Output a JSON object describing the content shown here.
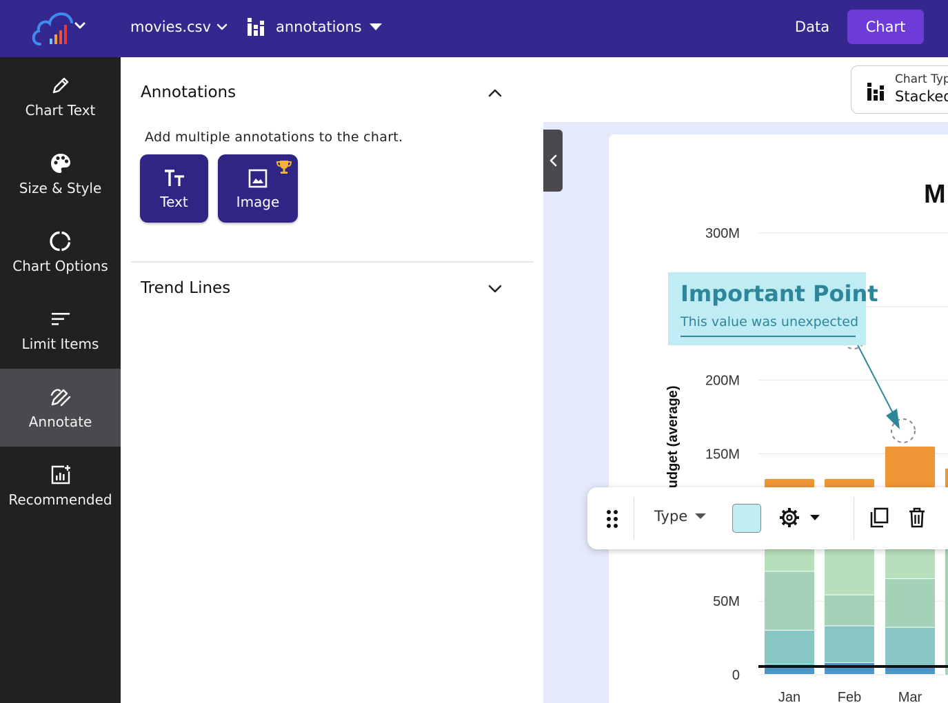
{
  "topbar": {
    "file_name": "movies.csv",
    "dataset_name": "annotations",
    "nav_data": "Data",
    "nav_chart": "Chart",
    "accent_color": "#34288e",
    "button_color": "#6d3bd8"
  },
  "sidebar": {
    "items": [
      {
        "label": "Chart Text",
        "icon": "pencil-icon"
      },
      {
        "label": "Size & Style",
        "icon": "palette-icon"
      },
      {
        "label": "Chart Options",
        "icon": "circle-options-icon"
      },
      {
        "label": "Limit Items",
        "icon": "filter-lines-icon"
      },
      {
        "label": "Annotate",
        "icon": "annotate-icon",
        "active": true
      },
      {
        "label": "Recommended",
        "icon": "recommended-chart-icon"
      }
    ]
  },
  "panel": {
    "annotations_title": "Annotations",
    "annotations_desc": "Add multiple annotations to the chart.",
    "text_button": "Text",
    "image_button": "Image",
    "trend_lines_title": "Trend Lines"
  },
  "chart_header": {
    "chart_type_label": "Chart Type",
    "chart_type_value": "Stacked"
  },
  "annotation": {
    "title": "Important Point",
    "subtitle": "This value was unexpected",
    "bg_color": "#c0ecf4",
    "text_color": "#2d8699"
  },
  "toolbar": {
    "type_label": "Type",
    "swatch_color": "#c0ecf4"
  },
  "chart_data": {
    "type": "bar",
    "stacked": true,
    "title": "M",
    "ylabel": "n Budget (average)",
    "ylim": [
      0,
      300000000
    ],
    "yticks": [
      "0",
      "50M",
      "150M",
      "200M",
      "300M"
    ],
    "ytick_values": [
      0,
      50000000,
      150000000,
      200000000,
      300000000
    ],
    "categories": [
      "Jan",
      "Feb",
      "Mar"
    ],
    "totals": [
      133000000,
      133000000,
      155000000
    ],
    "series": [
      {
        "color": "#4a96c6",
        "values": [
          7000000,
          8000000,
          6000000
        ]
      },
      {
        "color": "#88c6c4",
        "values": [
          23000000,
          25000000,
          26000000
        ]
      },
      {
        "color": "#a3d2b8",
        "values": [
          40000000,
          21000000,
          33000000
        ]
      },
      {
        "color": "#b6dfbb",
        "values": [
          26000000,
          36000000,
          30000000
        ]
      },
      {
        "color": "#ee9536",
        "values": [
          37000000,
          43000000,
          60000000
        ]
      }
    ]
  }
}
